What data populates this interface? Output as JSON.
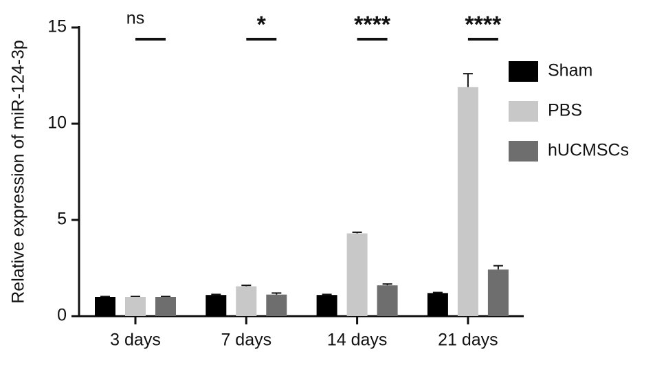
{
  "chart_data": {
    "type": "bar",
    "y_label": "Relative expression of miR-124-3p",
    "categories": [
      "3 days",
      "7 days",
      "14 days",
      "21 days"
    ],
    "series": [
      {
        "name": "Sham",
        "color": "#000000",
        "values": [
          1.0,
          1.1,
          1.1,
          1.2
        ],
        "errors": [
          0.02,
          0.03,
          0.03,
          0.03
        ]
      },
      {
        "name": "PBS",
        "color": "#c8c8c8",
        "values": [
          1.0,
          1.55,
          4.3,
          11.9
        ],
        "errors": [
          0.02,
          0.05,
          0.06,
          0.7
        ]
      },
      {
        "name": "hUCMSCs",
        "color": "#6e6e6e",
        "values": [
          1.0,
          1.12,
          1.6,
          2.42
        ],
        "errors": [
          0.02,
          0.08,
          0.07,
          0.2
        ]
      }
    ],
    "significance": [
      "ns",
      "*",
      "****",
      "****"
    ],
    "ylim": [
      0,
      15
    ],
    "yticks": [
      0,
      5,
      10,
      15
    ],
    "grid": false
  }
}
